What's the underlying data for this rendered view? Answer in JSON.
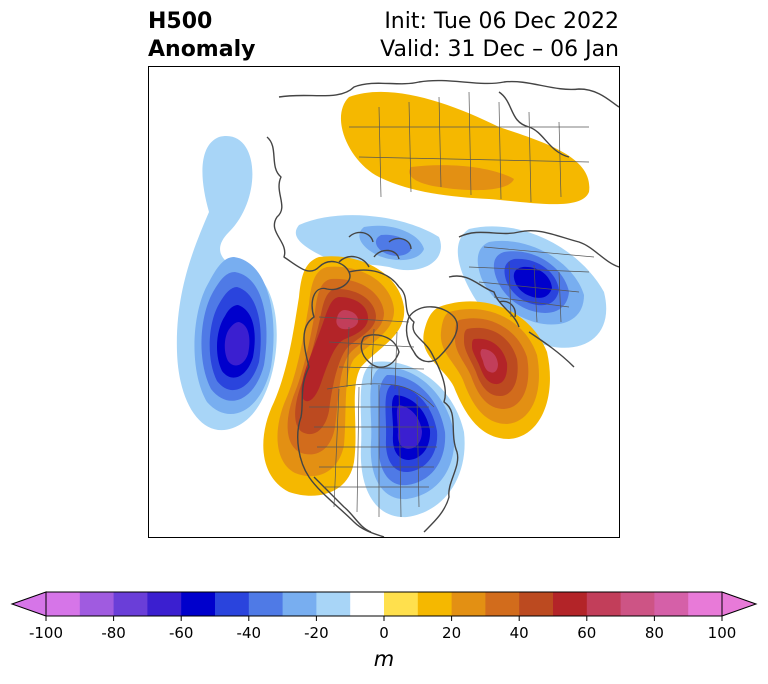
{
  "title": {
    "left": "H500\nAnomaly",
    "right_line1": "Init: Tue 06 Dec 2022",
    "right_line2": "Valid: 31 Dec – 06 Jan"
  },
  "colorbar": {
    "unit": "m",
    "ticks": [
      "-100",
      "-80",
      "-60",
      "-40",
      "-20",
      "0",
      "20",
      "40",
      "60",
      "80",
      "100"
    ],
    "min": -100,
    "max": 100,
    "step": 10,
    "colors": [
      "#d675e8",
      "#a05be0",
      "#6a3ed8",
      "#3b1fd0",
      "#0000cc",
      "#2a44dd",
      "#4f7ae6",
      "#78aef0",
      "#a8d5f7",
      "#ffffff",
      "#ffe04d",
      "#f5b800",
      "#e39013",
      "#d26c1c",
      "#bc4a20",
      "#b32428",
      "#c23e5a",
      "#cd5485",
      "#d560a8",
      "#e87ad8"
    ],
    "extend": "both"
  },
  "map_colors": {
    "land_outline": "#444444",
    "border": "#555555",
    "frame": "#000000"
  },
  "anomalies": [
    {
      "name": "neg-pacific",
      "value": -65
    },
    {
      "name": "neg-eastern-us",
      "value": -60
    },
    {
      "name": "neg-scandinavia",
      "value": -55
    },
    {
      "name": "neg-arctic",
      "value": -30
    },
    {
      "name": "pos-alaska",
      "value": 55
    },
    {
      "name": "pos-west-us",
      "value": 50
    },
    {
      "name": "pos-greenland",
      "value": 52
    },
    {
      "name": "pos-siberia",
      "value": 18
    }
  ]
}
